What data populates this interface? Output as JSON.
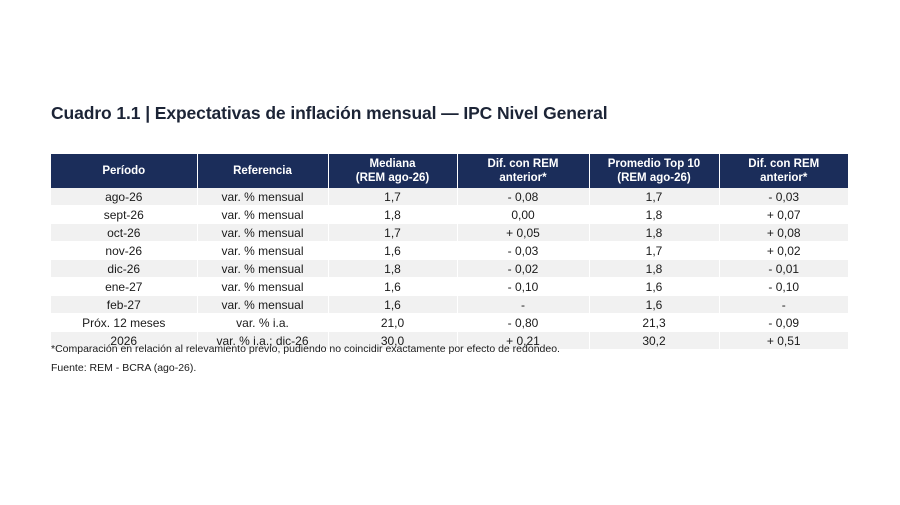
{
  "title": "Cuadro 1.1 | Expectativas de inflación mensual — IPC Nivel General",
  "table": {
    "headers": [
      [
        "Período"
      ],
      [
        "Referencia"
      ],
      [
        "Mediana",
        "(REM ago-26)"
      ],
      [
        "Dif. con REM",
        "anterior*"
      ],
      [
        "Promedio Top 10",
        "(REM ago-26)"
      ],
      [
        "Dif. con REM",
        "anterior*"
      ]
    ],
    "rows": [
      [
        "ago-26",
        "var. % mensual",
        "1,7",
        "- 0,08",
        "1,7",
        "- 0,03"
      ],
      [
        "sept-26",
        "var. % mensual",
        "1,8",
        "0,00",
        "1,8",
        "+ 0,07"
      ],
      [
        "oct-26",
        "var. % mensual",
        "1,7",
        "+ 0,05",
        "1,8",
        "+ 0,08"
      ],
      [
        "nov-26",
        "var. % mensual",
        "1,6",
        "- 0,03",
        "1,7",
        "+ 0,02"
      ],
      [
        "dic-26",
        "var. % mensual",
        "1,8",
        "- 0,02",
        "1,8",
        "- 0,01"
      ],
      [
        "ene-27",
        "var. % mensual",
        "1,6",
        "- 0,10",
        "1,6",
        "- 0,10"
      ],
      [
        "feb-27",
        "var. % mensual",
        "1,6",
        "-",
        "1,6",
        "-"
      ],
      [
        "Próx. 12 meses",
        "var. % i.a.",
        "21,0",
        "- 0,80",
        "21,3",
        "- 0,09"
      ],
      [
        "2026",
        "var. % i.a.; dic-26",
        "30,0",
        "+ 0,21",
        "30,2",
        "+ 0,51"
      ]
    ]
  },
  "notes": {
    "comparison": "*Comparación en relación al relevamiento previo, pudiendo no coincidir exactamente por efecto de redondeo.",
    "source": "Fuente: REM - BCRA (ago-26)."
  },
  "colors": {
    "header_bg": "#1b2d5a",
    "stripe_bg": "#f1f1f1",
    "title_color": "#1c2436"
  }
}
